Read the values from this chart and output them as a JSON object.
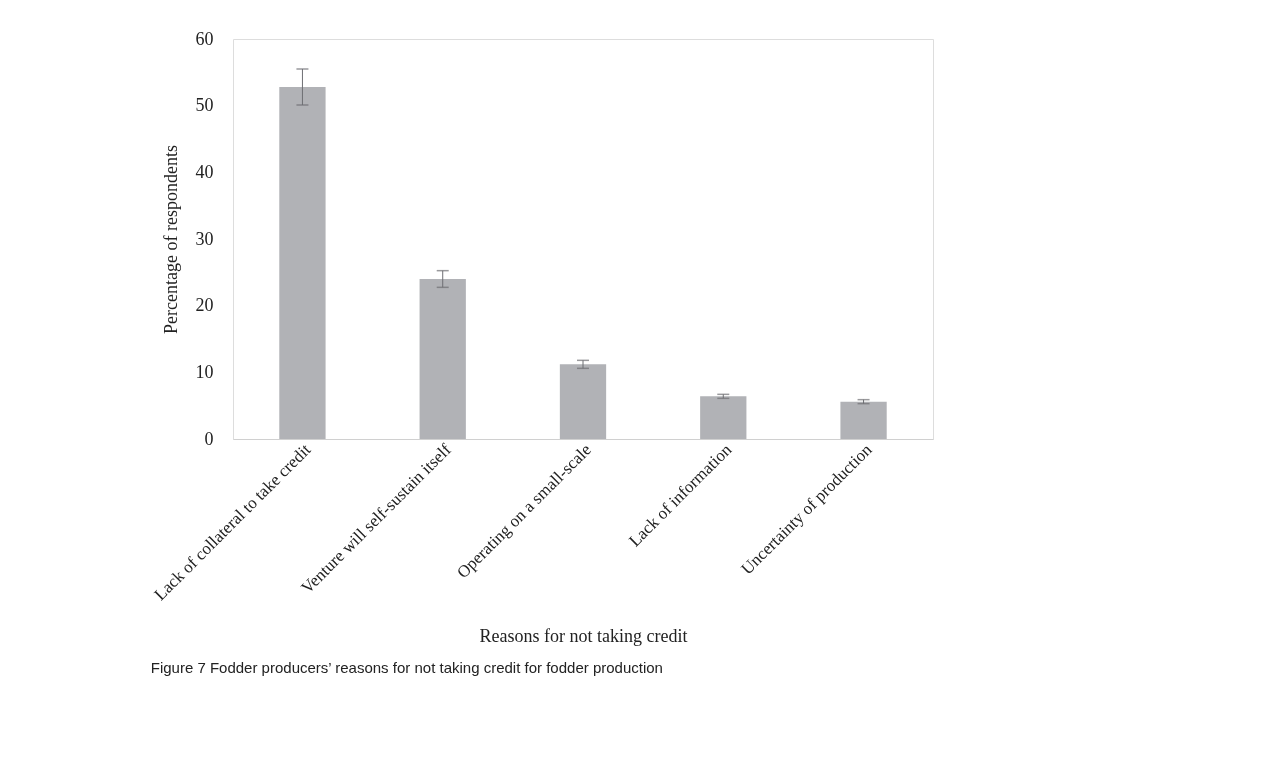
{
  "chart_data": {
    "type": "bar",
    "xlabel": "Reasons for not taking credit",
    "ylabel": "Percentage of  respondents",
    "categories": [
      "Lack of collateral to take credit",
      "Venture will self-sustain itself",
      "Operating on a small-scale",
      "Lack of information",
      "Uncertainty of production"
    ],
    "values": [
      52.8,
      24.0,
      11.2,
      6.4,
      5.6
    ],
    "errors": [
      2.7,
      1.25,
      0.6,
      0.3,
      0.3
    ],
    "color": "#b1b2b6",
    "ylim": [
      0,
      60
    ],
    "yticks": [
      0,
      10,
      20,
      30,
      40,
      50,
      60
    ],
    "grid": false,
    "annotations": [
      "Figure 7 Fodder producers’ reasons for not taking credit for fodder production"
    ]
  }
}
